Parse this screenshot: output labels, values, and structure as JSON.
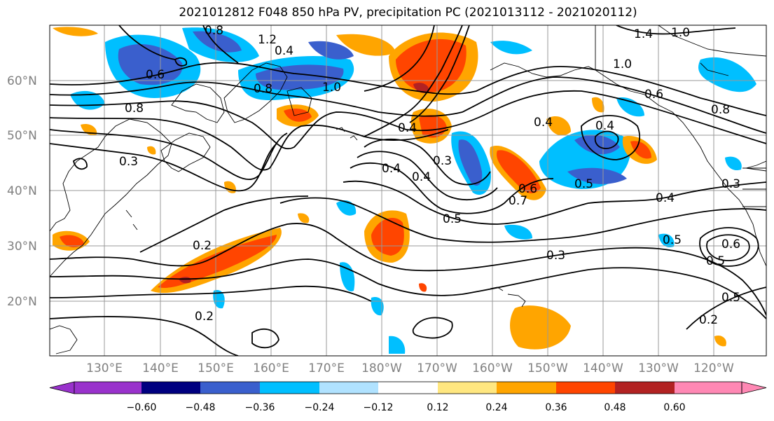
{
  "title": "2021012812 F048 850 hPa PV, precipitation PC (2021013112 - 2021020112)",
  "latitude_labels": [
    "60°N",
    "50°N",
    "40°N",
    "30°N",
    "20°N"
  ],
  "longitude_labels": [
    "130°E",
    "140°E",
    "150°E",
    "160°E",
    "170°E",
    "180°W",
    "170°W",
    "160°W",
    "150°W",
    "140°W",
    "130°W",
    "120°W"
  ],
  "colorbar": {
    "ticks": [
      "−0.60",
      "−0.48",
      "−0.36",
      "−0.24",
      "−0.12",
      "0.12",
      "0.24",
      "0.36",
      "0.48",
      "0.60"
    ],
    "colors": [
      "#9932cc",
      "#000080",
      "#3a5fcd",
      "#00bfff",
      "#b0e2ff",
      "#ffffff",
      "#ffe780",
      "#ffa500",
      "#ff4500",
      "#b22222",
      "#ff88b4"
    ]
  },
  "contour_labels": [
    "0.8",
    "1.2",
    "1.0",
    "1.4",
    "1.0",
    "0.8",
    "1.0",
    "0.6",
    "0.4",
    "0.3",
    "0.4",
    "0.5",
    "0.4",
    "0.5",
    "0.6",
    "0.7",
    "0.8",
    "0.3",
    "0.2",
    "0.2",
    "0.5",
    "0.2",
    "0.3",
    "0.4",
    "0.5",
    "0.6",
    "0.4",
    "0.4",
    "0.6",
    "0.8",
    "0.4",
    "0.5",
    "0.3"
  ]
}
